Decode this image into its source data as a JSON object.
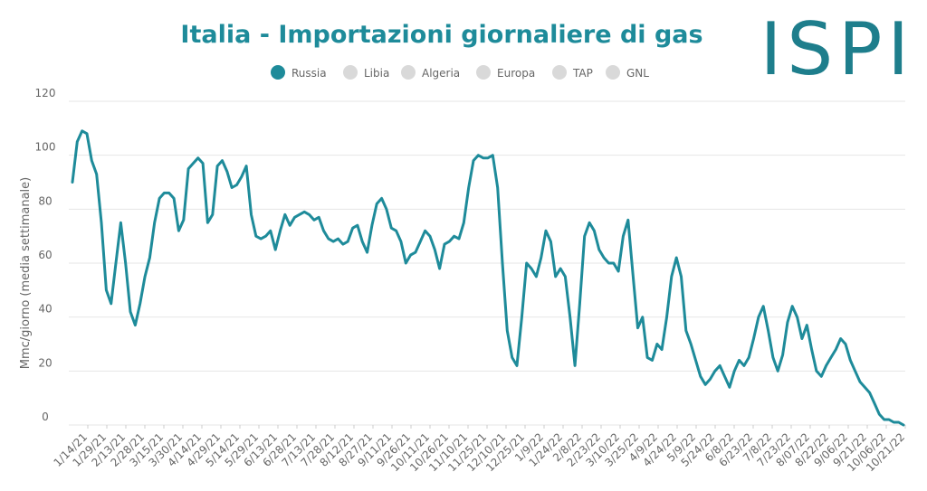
{
  "logo": {
    "text": "ISPI",
    "color": "#1e7e8c"
  },
  "chart_data": {
    "type": "line",
    "title": "Italia - Importazioni giornaliere di gas",
    "ylabel": "Mmc/giorno (media settimanale)",
    "xlabel": "",
    "ylim": [
      0,
      120
    ],
    "yticks": [
      0,
      20,
      40,
      60,
      80,
      100,
      120
    ],
    "grid": true,
    "legend_position": "top-center",
    "colors": {
      "title": "#1e8b9a",
      "active": "#1e8b9a",
      "inactive": "#d9d9d9"
    },
    "legend": [
      {
        "name": "Russia",
        "active": true
      },
      {
        "name": "Libia",
        "active": false
      },
      {
        "name": "Algeria",
        "active": false
      },
      {
        "name": "Europa",
        "active": false
      },
      {
        "name": "TAP",
        "active": false
      },
      {
        "name": "GNL",
        "active": false
      }
    ],
    "x_tick_labels": [
      "1/14/21",
      "1/29/21",
      "2/13/21",
      "2/28/21",
      "3/15/21",
      "3/30/21",
      "4/14/21",
      "4/29/21",
      "5/14/21",
      "5/29/21",
      "6/13/21",
      "6/28/21",
      "7/13/21",
      "7/28/21",
      "8/12/21",
      "8/27/21",
      "9/11/21",
      "9/26/21",
      "10/11/21",
      "10/26/21",
      "11/10/21",
      "11/25/21",
      "12/10/21",
      "12/25/21",
      "1/9/22",
      "1/24/22",
      "2/8/22",
      "2/23/22",
      "3/10/22",
      "3/25/22",
      "4/9/22",
      "4/24/22",
      "5/9/22",
      "5/24/22",
      "6/8/22",
      "6/23/22",
      "7/8/22",
      "7/23/22",
      "8/07/22",
      "8/22/22",
      "9/06/22",
      "9/21/22",
      "10/06/22",
      "10/21/22"
    ],
    "series": [
      {
        "name": "Russia",
        "color": "#1e8b9a",
        "values": [
          90,
          105,
          109,
          108,
          98,
          93,
          75,
          50,
          45,
          60,
          75,
          60,
          42,
          37,
          45,
          55,
          62,
          75,
          84,
          86,
          86,
          84,
          72,
          76,
          95,
          97,
          99,
          97,
          75,
          78,
          96,
          98,
          94,
          88,
          89,
          92,
          96,
          78,
          70,
          69,
          70,
          72,
          65,
          72,
          78,
          74,
          77,
          78,
          79,
          78,
          76,
          77,
          72,
          69,
          68,
          69,
          67,
          68,
          73,
          74,
          68,
          64,
          74,
          82,
          84,
          80,
          73,
          72,
          68,
          60,
          63,
          64,
          68,
          72,
          70,
          65,
          58,
          67,
          68,
          70,
          69,
          75,
          88,
          98,
          100,
          99,
          99,
          100,
          88,
          60,
          35,
          25,
          22,
          40,
          60,
          58,
          55,
          62,
          72,
          68,
          55,
          58,
          55,
          40,
          22,
          45,
          70,
          75,
          72,
          65,
          62,
          60,
          60,
          57,
          70,
          76,
          56,
          36,
          40,
          25,
          24,
          30,
          28,
          40,
          55,
          62,
          55,
          35,
          30,
          24,
          18,
          15,
          17,
          20,
          22,
          18,
          14,
          20,
          24,
          22,
          25,
          32,
          40,
          44,
          35,
          25,
          20,
          26,
          38,
          44,
          40,
          32,
          37,
          28,
          20,
          18,
          22,
          25,
          28,
          32,
          30,
          24,
          20,
          16,
          14,
          12,
          8,
          4,
          2,
          2,
          1,
          1,
          0
        ]
      }
    ]
  }
}
